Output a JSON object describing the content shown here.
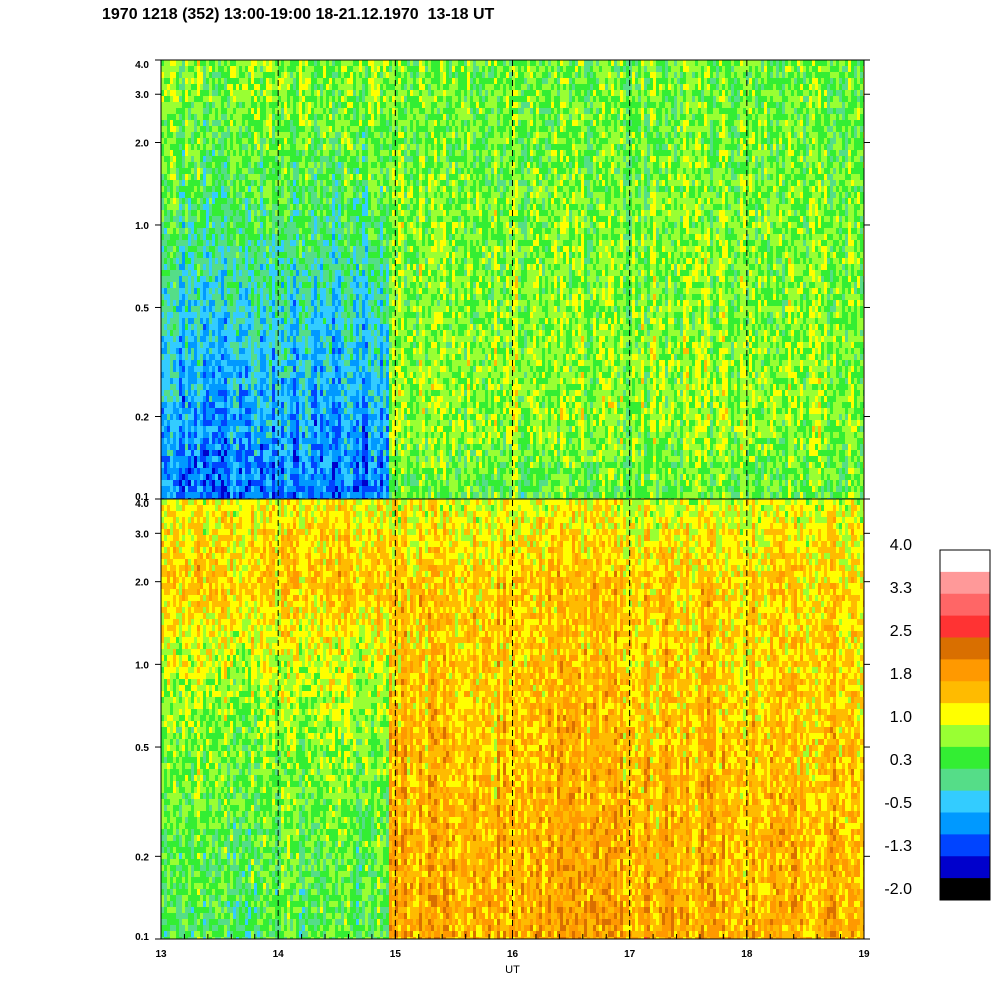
{
  "chart_data": {
    "type": "heatmap",
    "title": "1970 1218 (352) 13:00-19:00 18-21.12.1970  13-18 UT",
    "xlabel": "UT",
    "x_ticks": [
      "13",
      "14",
      "15",
      "16",
      "17",
      "18",
      "19"
    ],
    "xlim": [
      13,
      19
    ],
    "y_scale": "log",
    "ylim": [
      0.1,
      4.0
    ],
    "y_ticks": [
      "4.0",
      "3.0",
      "2.0",
      "1.0",
      "0.5",
      "0.2",
      "0.1"
    ],
    "vertical_dashed_lines_at": [
      14,
      15,
      16,
      17,
      18
    ],
    "panels": [
      {
        "name": "",
        "segments": [
          {
            "x_range": [
              13,
              14.95
            ],
            "level_by_frequency": [
              [
                0.1,
                -0.9
              ],
              [
                0.2,
                -0.6
              ],
              [
                0.5,
                -0.2
              ],
              [
                1.0,
                0.2
              ],
              [
                2.0,
                0.5
              ],
              [
                4.0,
                0.7
              ]
            ]
          },
          {
            "x_range": [
              14.95,
              19
            ],
            "level_by_frequency": [
              [
                0.1,
                0.5
              ],
              [
                0.2,
                0.8
              ],
              [
                0.5,
                0.7
              ],
              [
                1.0,
                0.7
              ],
              [
                2.0,
                0.6
              ],
              [
                4.0,
                0.6
              ]
            ]
          }
        ]
      },
      {
        "name": "",
        "segments": [
          {
            "x_range": [
              13,
              14.95
            ],
            "level_by_frequency": [
              [
                0.1,
                0.4
              ],
              [
                0.2,
                0.5
              ],
              [
                0.5,
                0.7
              ],
              [
                1.0,
                1.0
              ],
              [
                2.0,
                1.5
              ],
              [
                4.0,
                1.2
              ]
            ]
          },
          {
            "x_range": [
              14.95,
              19
            ],
            "level_by_frequency": [
              [
                0.1,
                1.8
              ],
              [
                0.2,
                1.7
              ],
              [
                0.5,
                1.6
              ],
              [
                1.0,
                1.5
              ],
              [
                2.0,
                1.5
              ],
              [
                4.0,
                1.1
              ]
            ]
          }
        ]
      }
    ],
    "colorbar": {
      "labels": [
        "4.0",
        "3.3",
        "2.5",
        "1.8",
        "1.0",
        "0.3",
        "-0.5",
        "-1.3",
        "-2.0"
      ],
      "colors": [
        "#ffffff",
        "#ff9999",
        "#ff6666",
        "#ff3333",
        "#d96f00",
        "#ff9900",
        "#ffbb00",
        "#ffff00",
        "#99ff33",
        "#33ee33",
        "#55dd88",
        "#33ccff",
        "#0099ff",
        "#0044ff",
        "#0000cc",
        "#000000"
      ],
      "range": [
        -2.0,
        4.0
      ]
    }
  }
}
